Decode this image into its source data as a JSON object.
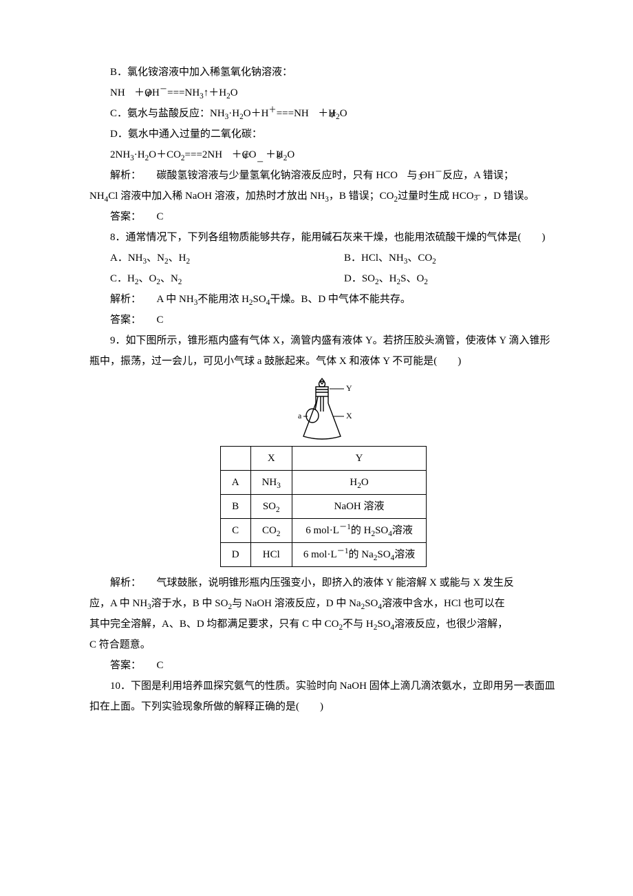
{
  "q7": {
    "optB_line1": "B．氯化铵溶液中加入稀氢氧化钠溶液：",
    "optB_eq_prefix": "NH",
    "optB_eq_mid1": "＋OH",
    "optB_eq_mid2": "===NH",
    "optB_eq_suffix": "↑＋H",
    "optB_eq_end": "O",
    "optC_prefix": "C．氨水与盐酸反应：NH",
    "optC_mid1": "·H",
    "optC_mid2": "O＋H",
    "optC_mid3": "===NH",
    "optC_end": "＋H",
    "optC_end2": "O",
    "optD_line1": "D．氨水中通入过量的二氧化碳：",
    "optD_eq_p1": "2NH",
    "optD_eq_p2": "·H",
    "optD_eq_p3": "O＋CO",
    "optD_eq_p4": "===2NH",
    "optD_eq_p5": "＋CO",
    "optD_eq_p6": "＋H",
    "optD_eq_p7": "O",
    "explain_label": "解析：",
    "explain_p1a": "碳酸氢铵溶液与少量氢氧化钠溶液反应时，只有 HCO",
    "explain_p1b": "与 OH",
    "explain_p1c": "反应，A 错误；",
    "explain_p2a": "NH",
    "explain_p2b": "Cl 溶液中加入稀 NaOH 溶液，加热时才放出 NH",
    "explain_p2c": "，B 错误；CO",
    "explain_p2d": "过量时生成 HCO",
    "explain_p2e": "，D 错误。",
    "answer_label": "答案：",
    "answer": "C"
  },
  "q8": {
    "stem_a": "8．通常情况下，下列各组物质能够共存，能用碱石灰来干燥，也能用浓硫酸干燥的气体是(　　)",
    "optA": "A．NH",
    "optA2": "、N",
    "optA3": "、H",
    "optB": "B．HCl、NH",
    "optB2": "、CO",
    "optC": "C．H",
    "optC2": "、O",
    "optC3": "、N",
    "optD": "D．SO",
    "optD2": "、H",
    "optD3": "S、O",
    "explain_label": "解析：",
    "explain_a": "A 中 NH",
    "explain_b": "不能用浓 H",
    "explain_c": "SO",
    "explain_d": "干燥。B、D 中气体不能共存。",
    "answer_label": "答案：",
    "answer": "C"
  },
  "q9": {
    "stem": "9．如下图所示，锥形瓶内盛有气体 X，滴管内盛有液体 Y。若挤压胶头滴管，使液体 Y 滴入锥形瓶中，振荡，过一会儿，可见小气球 a 鼓胀起来。气体 X 和液体 Y 不可能是(　　)",
    "diagram": {
      "label_a": "a",
      "label_X": "X",
      "label_Y": "Y",
      "flask_stroke": "#000000",
      "stroke_width": 1.4
    },
    "table": {
      "header_X": "X",
      "header_Y": "Y",
      "rows": [
        {
          "label": "A",
          "x_pre": "NH",
          "x_sub": "3",
          "y_html": "H<sub>2</sub>O"
        },
        {
          "label": "B",
          "x_pre": "SO",
          "x_sub": "2",
          "y_html": "NaOH 溶液"
        },
        {
          "label": "C",
          "x_pre": "CO",
          "x_sub": "2",
          "y_html": "6 mol·L<sup>－1</sup>的 H<sub>2</sub>SO<sub>4</sub>溶液"
        },
        {
          "label": "D",
          "x_pre": "HCl",
          "x_sub": "",
          "y_html": "6 mol·L<sup>－1</sup>的 Na<sub>2</sub>SO<sub>4</sub>溶液"
        }
      ]
    },
    "explain_label": "解析：",
    "explain_p1": "气球鼓胀，说明锥形瓶内压强变小，即挤入的液体 Y 能溶解 X 或能与 X 发生反",
    "explain_p2a": "应，A 中 NH",
    "explain_p2b": "溶于水，B 中 SO",
    "explain_p2c": "与 NaOH 溶液反应，D 中 Na",
    "explain_p2d": "SO",
    "explain_p2e": "溶液中含水，HCl 也可以在",
    "explain_p3a": "其中完全溶解，A、B、D 均都满足要求，只有 C 中 CO",
    "explain_p3b": "不与 H",
    "explain_p3c": "SO",
    "explain_p3d": "溶液反应，也很少溶解，",
    "explain_p4": "C 符合题意。",
    "answer_label": "答案：",
    "answer": "C"
  },
  "q10": {
    "stem": "10．下图是利用培养皿探究氨气的性质。实验时向 NaOH 固体上滴几滴浓氨水，立即用另一表面皿扣在上面。下列实验现象所做的解释正确的是(　　)"
  }
}
